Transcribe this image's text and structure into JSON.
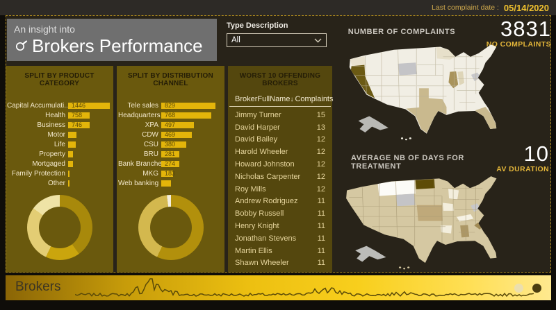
{
  "header": {
    "last_complaint_label": "Last complaint date :",
    "last_complaint_date": "05/14/2020"
  },
  "title": {
    "subtitle": "An insight into",
    "title": "Brokers Performance",
    "icon": "magnifier-icon"
  },
  "slicer": {
    "label": "Type Description",
    "value": "All"
  },
  "kpis": {
    "complaints": {
      "label": "NUMBER OF COMPLAINTS",
      "value": "3831",
      "caption": "NO COMPLAINTS"
    },
    "duration": {
      "label": "AVERAGE NB OF DAYS FOR TREATMENT",
      "value": "10",
      "caption": "AV DURATION"
    }
  },
  "footer": {
    "title": "Brokers",
    "pagination_dot_colors": [
      "#ecdfae",
      "#4a3d10"
    ]
  },
  "chart_data": [
    {
      "id": "split_by_product_category",
      "type": "bar",
      "orientation": "horizontal",
      "title": "SPLIT BY PRODUCT CATEGORY",
      "categories": [
        "Capital Accumulati...",
        "Health",
        "Business",
        "Motor",
        "Life",
        "Property",
        "Mortgaged",
        "Family Protection",
        "Other"
      ],
      "values": [
        1446,
        758,
        746,
        280,
        255,
        175,
        160,
        50,
        40
      ],
      "labeled_values": [
        1446,
        758,
        746
      ],
      "bar_color": "#e3b50a",
      "xlim": [
        0,
        1446
      ]
    },
    {
      "id": "split_by_distribution_channel",
      "type": "bar",
      "orientation": "horizontal",
      "title": "SPLIT BY DISTRIBUTION CHANNEL",
      "categories": [
        "Tele sales",
        "Headquarters",
        "XPA",
        "CDW",
        "CSU",
        "BRU",
        "Bank Branches",
        "MKG",
        "Web banking"
      ],
      "values": [
        829,
        768,
        497,
        469,
        380,
        281,
        274,
        183,
        150
      ],
      "labeled_values": [
        829,
        768,
        497,
        469,
        380,
        281,
        274,
        183
      ],
      "bar_color": "#e3b50a",
      "xlim": [
        0,
        829
      ]
    },
    {
      "id": "product_category_donut",
      "type": "pie",
      "donut": true,
      "segments": [
        {
          "pct": 40,
          "color": "#a8890b"
        },
        {
          "pct": 17,
          "color": "#caa50d"
        },
        {
          "pct": 28,
          "color": "#e3cd74"
        },
        {
          "pct": 15,
          "color": "#efe3a6"
        }
      ]
    },
    {
      "id": "distribution_channel_donut",
      "type": "pie",
      "donut": true,
      "segments": [
        {
          "pct": 57,
          "color": "#b2900c"
        },
        {
          "pct": 41,
          "color": "#d3b84e"
        },
        {
          "pct": 2,
          "color": "#f4efdd"
        }
      ]
    },
    {
      "id": "worst_10_offending_brokers",
      "type": "table",
      "title": "WORST 10 OFFENDING BROKERS",
      "columns": [
        "BrokerFullName",
        "Complaints"
      ],
      "rows": [
        [
          "Jimmy Turner",
          15
        ],
        [
          "David Harper",
          13
        ],
        [
          "David Bailey",
          12
        ],
        [
          "Harold Wheeler",
          12
        ],
        [
          "Howard Johnston",
          12
        ],
        [
          "Nicholas Carpenter",
          12
        ],
        [
          "Roy Mills",
          12
        ],
        [
          "Andrew Rodriguez",
          11
        ],
        [
          "Bobby Russell",
          11
        ],
        [
          "Henry Knight",
          11
        ],
        [
          "Jonathan Stevens",
          11
        ],
        [
          "Martin Ellis",
          11
        ],
        [
          "Shawn Wheeler",
          11
        ]
      ]
    },
    {
      "id": "complaints_by_state_map",
      "type": "map",
      "title": "NUMBER OF COMPLAINTS",
      "base": "#f1eee4",
      "borders": "#b9b097",
      "states": {
        "WA": "#e9e2cf",
        "MN": "#e7e0ca",
        "CA": "#6b5a14",
        "TX": "#c9b98e",
        "FL": "#c9b98e",
        "IL": "#a9935b",
        "IN": "#ded5b8",
        "WY": "#c4c4c7",
        "WV": "#c7c7ca",
        "AK": "#b9b9b5",
        "HI": "#efece0"
      }
    },
    {
      "id": "avg_days_treatment_map",
      "type": "map",
      "title": "AVERAGE NB OF DAYS FOR TREATMENT",
      "base": "#d5c8a2",
      "borders": "#a79a76",
      "states": {
        "MT": "#fcfbf7",
        "ND": "#5e4c07",
        "WY": "#c4c4c7",
        "WV": "#c7c7ca",
        "NEKS": "#bfa97a",
        "IA": "#f3eedd",
        "WI": "#f3eedd",
        "KY": "#f6f2e4",
        "AR": "#f3eedd",
        "SC": "#a08a55",
        "AL": "#ac9765",
        "AK": "#bcbcb9",
        "HI": "#d5c8a2"
      }
    }
  ]
}
